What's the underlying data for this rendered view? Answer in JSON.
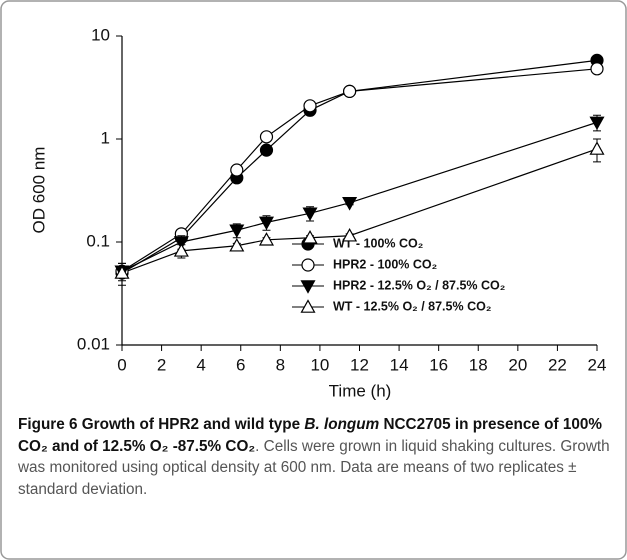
{
  "chart_data": {
    "type": "line",
    "y_label": "OD 600 nm",
    "x_label": "Time (h)",
    "log_y": true,
    "x": [
      0,
      3,
      5.8,
      7.3,
      9.5,
      11.5,
      24
    ],
    "xlim": [
      0,
      24
    ],
    "xticks": [
      0,
      2,
      4,
      6,
      8,
      10,
      12,
      14,
      16,
      18,
      20,
      22,
      24
    ],
    "ylim": [
      0.01,
      10
    ],
    "yticks": [
      0.01,
      0.1,
      1,
      10
    ],
    "series": [
      {
        "name": "WT - 100% CO₂",
        "color": "#000000",
        "marker": "circle",
        "filled": true,
        "values": [
          0.05,
          0.11,
          0.42,
          0.78,
          1.9,
          2.9,
          5.8
        ]
      },
      {
        "name": "HPR2 - 100% CO₂",
        "color": "#000000",
        "marker": "circle",
        "filled": false,
        "values": [
          0.052,
          0.12,
          0.5,
          1.05,
          2.1,
          2.9,
          4.8
        ]
      },
      {
        "name": "HPR2 - 12.5% O₂ / 87.5% CO₂",
        "color": "#000000",
        "marker": "triangle-down",
        "filled": true,
        "values": [
          0.052,
          0.1,
          0.13,
          0.155,
          0.19,
          0.24,
          1.45
        ],
        "errors": [
          0.01,
          0.015,
          0.02,
          0.025,
          0.03,
          0.01,
          0.25
        ]
      },
      {
        "name": "WT - 12.5% O₂ / 87.5% CO₂",
        "color": "#000000",
        "marker": "triangle-up",
        "filled": false,
        "values": [
          0.05,
          0.082,
          0.092,
          0.105,
          0.11,
          0.115,
          0.8
        ],
        "errors": [
          0.012,
          0.012,
          0.005,
          0.005,
          0.005,
          0.005,
          0.2
        ]
      }
    ]
  },
  "caption": {
    "title_start": "Figure 6 Growth of HPR2 and wild type ",
    "title_italic": "B. longum",
    "title_end": " NCC2705 in presence of 100% CO₂ and of 12.5% O₂ -87.5% CO₂",
    "text": ". Cells were grown in liquid shaking cultures. Growth was monitored using optical density at 600 nm. Data are means of two replicates ± standard deviation."
  }
}
